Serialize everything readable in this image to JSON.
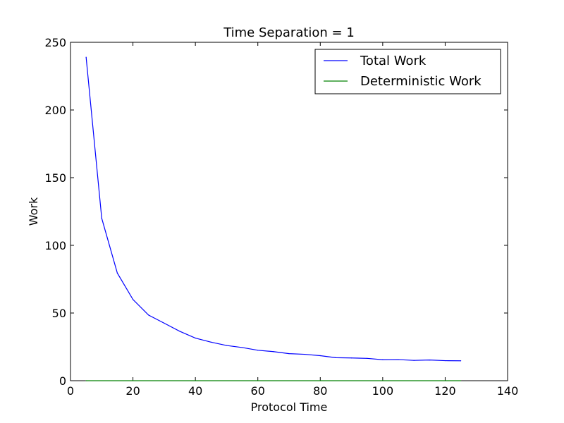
{
  "chart_data": {
    "type": "line",
    "title": "Time Separation = 1",
    "xlabel": "Protocol Time",
    "ylabel": "Work",
    "xlim": [
      0,
      140
    ],
    "ylim": [
      0,
      250
    ],
    "xticks": [
      0,
      20,
      40,
      60,
      80,
      100,
      120,
      140
    ],
    "yticks": [
      0,
      50,
      100,
      150,
      200,
      250
    ],
    "grid": false,
    "legend_position": "top-right",
    "series": [
      {
        "name": "Total Work",
        "color": "#0000ff",
        "x": [
          5,
          10,
          15,
          20,
          25,
          30,
          35,
          40,
          45,
          50,
          55,
          60,
          65,
          70,
          75,
          80,
          85,
          90,
          95,
          100,
          105,
          110,
          115,
          120,
          125
        ],
        "y": [
          239,
          120,
          79.5,
          60,
          48.5,
          42.5,
          36.5,
          31.5,
          28.5,
          26,
          24.5,
          22.5,
          21.5,
          20,
          19.5,
          18.5,
          17,
          16.8,
          16.5,
          15.5,
          15.6,
          15,
          15.3,
          14.8,
          14.7
        ]
      },
      {
        "name": "Deterministic Work",
        "color": "#008000",
        "x": [
          5,
          125
        ],
        "y": [
          0,
          0
        ]
      }
    ]
  }
}
